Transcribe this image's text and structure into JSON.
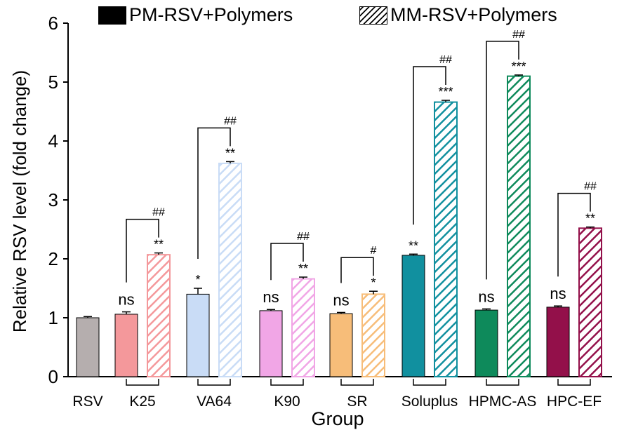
{
  "chart_data": {
    "type": "bar",
    "xlabel": "Group",
    "ylabel": "Relative RSV level (fold change)",
    "ylim": [
      0,
      6
    ],
    "yticks": [
      "0",
      "1",
      "2",
      "3",
      "4",
      "5",
      "6"
    ],
    "legend": [
      {
        "name": "PM-RSV+Polymers",
        "pattern": "solid"
      },
      {
        "name": "MM-RSV+Polymers",
        "pattern": "hatched"
      }
    ],
    "groups": [
      {
        "label": "RSV",
        "color": "#b5aeae",
        "bars": [
          {
            "series": "control",
            "value": 1.0,
            "error": 0.02,
            "sig": ""
          }
        ],
        "bracket": null
      },
      {
        "label": "K25",
        "color": "#f4989b",
        "bars": [
          {
            "series": "PM-RSV+Polymers",
            "value": 1.06,
            "error": 0.04,
            "sig": "ns"
          },
          {
            "series": "MM-RSV+Polymers",
            "value": 2.07,
            "error": 0.03,
            "sig": "**"
          }
        ],
        "bracket": "##"
      },
      {
        "label": "VA64",
        "color": "#c9dcf6",
        "bars": [
          {
            "series": "PM-RSV+Polymers",
            "value": 1.4,
            "error": 0.1,
            "sig": "*"
          },
          {
            "series": "MM-RSV+Polymers",
            "value": 3.62,
            "error": 0.03,
            "sig": "**"
          }
        ],
        "bracket": "##"
      },
      {
        "label": "K90",
        "color": "#f1a6e6",
        "bars": [
          {
            "series": "PM-RSV+Polymers",
            "value": 1.12,
            "error": 0.02,
            "sig": "ns"
          },
          {
            "series": "MM-RSV+Polymers",
            "value": 1.66,
            "error": 0.03,
            "sig": "**"
          }
        ],
        "bracket": "##"
      },
      {
        "label": "SR",
        "color": "#f7bd79",
        "bars": [
          {
            "series": "PM-RSV+Polymers",
            "value": 1.07,
            "error": 0.02,
            "sig": "ns"
          },
          {
            "series": "MM-RSV+Polymers",
            "value": 1.4,
            "error": 0.05,
            "sig": "*"
          }
        ],
        "bracket": "#"
      },
      {
        "label": "Soluplus",
        "color": "#11909f",
        "bars": [
          {
            "series": "PM-RSV+Polymers",
            "value": 2.06,
            "error": 0.02,
            "sig": "**"
          },
          {
            "series": "MM-RSV+Polymers",
            "value": 4.66,
            "error": 0.03,
            "sig": "***"
          }
        ],
        "bracket": "##"
      },
      {
        "label": "HPMC-AS",
        "color": "#0e8a5b",
        "bars": [
          {
            "series": "PM-RSV+Polymers",
            "value": 1.13,
            "error": 0.02,
            "sig": "ns"
          },
          {
            "series": "MM-RSV+Polymers",
            "value": 5.1,
            "error": 0.02,
            "sig": "***"
          }
        ],
        "bracket": "##"
      },
      {
        "label": "HPC-EF",
        "color": "#93104a",
        "bars": [
          {
            "series": "PM-RSV+Polymers",
            "value": 1.18,
            "error": 0.02,
            "sig": "ns"
          },
          {
            "series": "MM-RSV+Polymers",
            "value": 2.52,
            "error": 0.02,
            "sig": "**"
          }
        ],
        "bracket": "##"
      }
    ]
  }
}
